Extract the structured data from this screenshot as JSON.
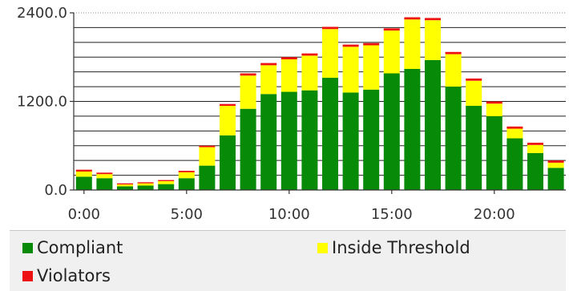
{
  "colors": {
    "compliant": "#078a07",
    "inside_threshold": "#ffff00",
    "violators": "#ee1111"
  },
  "chart_data": {
    "type": "bar",
    "stacked": true,
    "x": [
      0,
      1,
      2,
      3,
      4,
      5,
      6,
      7,
      8,
      9,
      10,
      11,
      12,
      13,
      14,
      15,
      16,
      17,
      18,
      19,
      20,
      21,
      22,
      23
    ],
    "x_tick_labels": [
      "0:00",
      "5:00",
      "10:00",
      "15:00",
      "20:00"
    ],
    "y_tick_labels": [
      "0.0",
      "1200.0",
      "2400.0"
    ],
    "ylim": [
      0,
      2400
    ],
    "grid": true,
    "legend_position": "bottom",
    "series": [
      {
        "name": "Compliant",
        "color_key": "compliant",
        "values": [
          180,
          160,
          50,
          60,
          80,
          160,
          330,
          740,
          1100,
          1300,
          1330,
          1350,
          1520,
          1320,
          1360,
          1580,
          1640,
          1760,
          1400,
          1140,
          1000,
          700,
          500,
          300
        ]
      },
      {
        "name": "Inside Threshold",
        "color_key": "inside_threshold",
        "values": [
          70,
          55,
          25,
          30,
          40,
          80,
          250,
          400,
          450,
          390,
          440,
          470,
          660,
          620,
          600,
          580,
          670,
          540,
          440,
          340,
          170,
          130,
          110,
          70
        ]
      },
      {
        "name": "Violators",
        "color_key": "violators",
        "values": [
          25,
          20,
          15,
          15,
          15,
          20,
          20,
          25,
          30,
          30,
          30,
          30,
          30,
          30,
          30,
          30,
          30,
          30,
          30,
          30,
          30,
          30,
          30,
          30
        ]
      }
    ]
  }
}
